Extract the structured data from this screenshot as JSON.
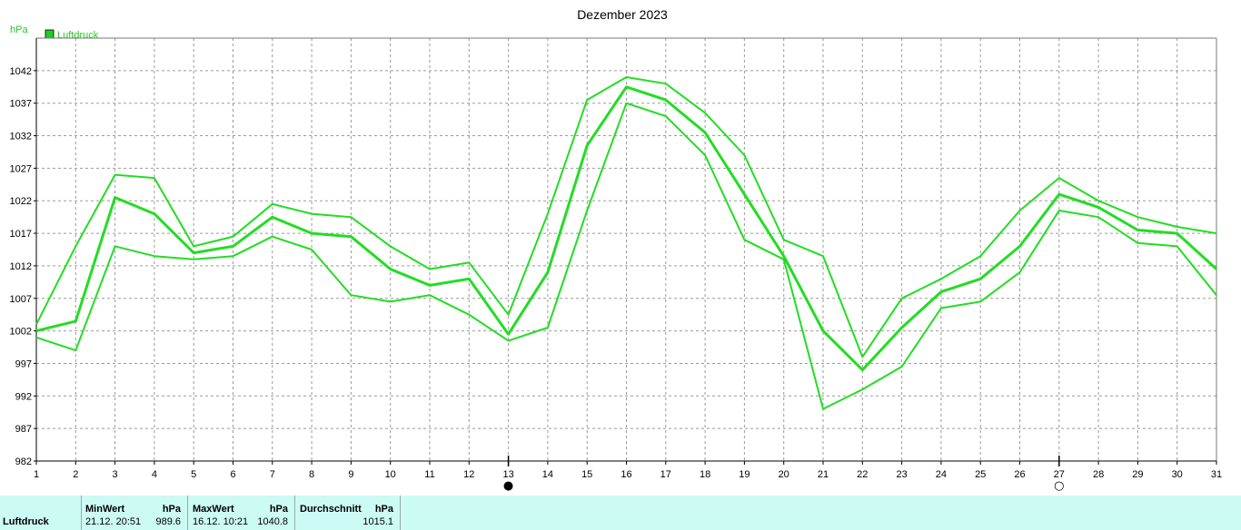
{
  "chart_data": {
    "type": "line",
    "title": "Dezember 2023",
    "ylabel": "hPa",
    "legend": "Luftdruck",
    "legend_position": "top-left",
    "grid": true,
    "x": [
      1,
      2,
      3,
      4,
      5,
      6,
      7,
      8,
      9,
      10,
      11,
      12,
      13,
      14,
      15,
      16,
      17,
      18,
      19,
      20,
      21,
      22,
      23,
      24,
      25,
      26,
      27,
      28,
      29,
      30,
      31
    ],
    "ylim": [
      982,
      1047
    ],
    "yticks": [
      982,
      987,
      992,
      997,
      1002,
      1007,
      1012,
      1017,
      1022,
      1027,
      1032,
      1037,
      1042
    ],
    "series": [
      {
        "role": "max",
        "values": [
          1003.0,
          1015.0,
          1026.0,
          1025.5,
          1015.0,
          1016.5,
          1021.5,
          1020.0,
          1019.5,
          1015.0,
          1011.5,
          1012.5,
          1004.5,
          1020.0,
          1037.5,
          1041.0,
          1040.0,
          1035.5,
          1029.0,
          1016.0,
          1013.5,
          998.0,
          1007.0,
          1010.0,
          1013.5,
          1020.5,
          1025.5,
          1022.0,
          1019.5,
          1018.0,
          1017.0
        ]
      },
      {
        "role": "avg",
        "values": [
          1002.0,
          1003.5,
          1022.5,
          1020.0,
          1014.0,
          1015.0,
          1019.5,
          1017.0,
          1016.5,
          1011.5,
          1009.0,
          1010.0,
          1001.5,
          1011.0,
          1030.5,
          1039.5,
          1037.5,
          1032.5,
          1023.0,
          1013.5,
          1002.0,
          996.0,
          1002.5,
          1008.0,
          1010.0,
          1015.0,
          1023.0,
          1021.0,
          1017.5,
          1017.0,
          1011.5
        ]
      },
      {
        "role": "min",
        "values": [
          1001.0,
          999.0,
          1015.0,
          1013.5,
          1013.0,
          1013.5,
          1016.5,
          1014.5,
          1007.5,
          1006.5,
          1007.5,
          1004.5,
          1000.5,
          1002.5,
          1020.5,
          1037.0,
          1035.0,
          1029.0,
          1016.0,
          1013.0,
          990.0,
          993.0,
          996.5,
          1005.5,
          1006.5,
          1011.0,
          1020.5,
          1019.5,
          1015.5,
          1015.0,
          1007.5
        ]
      }
    ],
    "markers": [
      {
        "day": 13,
        "symbol": "●"
      },
      {
        "day": 27,
        "symbol": "○"
      }
    ]
  },
  "colors": {
    "line": "#22dd22",
    "grid": "#9a9a9a",
    "axis": "#000000",
    "footer_bg": "#ccfbf4",
    "legend_swatch": "#22cc22"
  },
  "footer": {
    "name": "Luftdruck",
    "min_header": "MinWert",
    "min_unit": "hPa",
    "min_when": "21.12.  20:51",
    "min_value": "989.6",
    "max_header": "MaxWert",
    "max_unit": "hPa",
    "max_when": "16.12.  10:21",
    "max_value": "1040.8",
    "avg_header": "Durchschnitt",
    "avg_unit": "hPa",
    "avg_value": "1015.1"
  }
}
